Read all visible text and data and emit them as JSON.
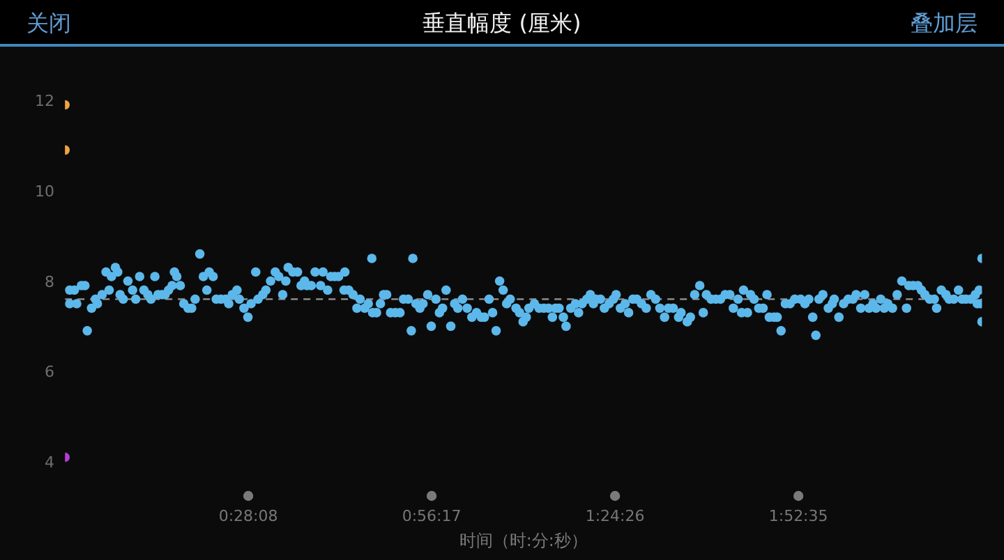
{
  "chart_data": {
    "type": "scatter",
    "title": "垂直幅度 (厘米)",
    "xlabel": "时间（时:分:秒）",
    "annotations": [
      "关闭",
      "叠加层"
    ],
    "xlim": [
      0,
      2.346
    ],
    "xticks": [
      {
        "value": 0.468889,
        "label": "0:28:08"
      },
      {
        "value": 0.938056,
        "label": "0:56:17"
      },
      {
        "value": 1.407222,
        "label": "1:24:26"
      },
      {
        "value": 1.876389,
        "label": "1:52:35"
      }
    ],
    "ylim": [
      4,
      12
    ],
    "yticks": [
      4,
      6,
      8,
      10,
      12
    ],
    "marker": "circle",
    "ref_lines": [
      {
        "axis": "y",
        "value": 7.6,
        "color": "#8c8c8c",
        "line_style": "dashed"
      }
    ],
    "series": [
      {
        "color": "#5cb8ea",
        "x": [
          0.012,
          0.024,
          0.012,
          0.03,
          0.042,
          0.051,
          0.057,
          0.068,
          0.078,
          0.083,
          0.095,
          0.105,
          0.113,
          0.119,
          0.129,
          0.135,
          0.141,
          0.149,
          0.161,
          0.173,
          0.181,
          0.191,
          0.202,
          0.212,
          0.22,
          0.23,
          0.238,
          0.248,
          0.256,
          0.265,
          0.274,
          0.28,
          0.286,
          0.295,
          0.304,
          0.315,
          0.324,
          0.333,
          0.345,
          0.354,
          0.363,
          0.369,
          0.379,
          0.387,
          0.399,
          0.411,
          0.419,
          0.428,
          0.44,
          0.446,
          0.458,
          0.468,
          0.476,
          0.488,
          0.494,
          0.506,
          0.514,
          0.526,
          0.538,
          0.547,
          0.557,
          0.565,
          0.571,
          0.583,
          0.595,
          0.604,
          0.613,
          0.619,
          0.63,
          0.64,
          0.654,
          0.66,
          0.672,
          0.68,
          0.69,
          0.7,
          0.714,
          0.716,
          0.726,
          0.737,
          0.747,
          0.755,
          0.767,
          0.776,
          0.785,
          0.787,
          0.797,
          0.807,
          0.815,
          0.823,
          0.833,
          0.845,
          0.857,
          0.866,
          0.878,
          0.886,
          0.89,
          0.898,
          0.908,
          0.916,
          0.928,
          0.937,
          0.949,
          0.958,
          0.966,
          0.975,
          0.987,
          0.997,
          1.005,
          1.017,
          1.029,
          1.041,
          1.053,
          1.065,
          1.073,
          1.085,
          1.094,
          1.103,
          1.112,
          1.121,
          1.13,
          1.139,
          1.154,
          1.163,
          1.172,
          1.18,
          1.187,
          1.201,
          1.213,
          1.225,
          1.237,
          1.247,
          1.255,
          1.264,
          1.275,
          1.282,
          1.294,
          1.306,
          1.314,
          1.323,
          1.335,
          1.344,
          1.352,
          1.358,
          1.37,
          1.38,
          1.392,
          1.403,
          1.41,
          1.421,
          1.433,
          1.442,
          1.453,
          1.463,
          1.475,
          1.487,
          1.499,
          1.511,
          1.522,
          1.534,
          1.544,
          1.556,
          1.57,
          1.576,
          1.592,
          1.6,
          1.611,
          1.624,
          1.633,
          1.641,
          1.653,
          1.665,
          1.677,
          1.689,
          1.701,
          1.71,
          1.722,
          1.731,
          1.736,
          1.746,
          1.754,
          1.763,
          1.775,
          1.786,
          1.796,
          1.802,
          1.814,
          1.822,
          1.832,
          1.843,
          1.855,
          1.867,
          1.882,
          1.893,
          1.903,
          1.913,
          1.921,
          1.929,
          1.939,
          1.953,
          1.963,
          1.968,
          1.98,
          1.992,
          2.004,
          2.016,
          2.024,
          2.036,
          2.046,
          2.057,
          2.067,
          2.075,
          2.087,
          2.096,
          2.105,
          2.117,
          2.129,
          2.141,
          2.153,
          2.159,
          2.17,
          2.182,
          2.191,
          2.2,
          2.212,
          2.224,
          2.23,
          2.242,
          2.254,
          2.262,
          2.274,
          2.286,
          2.295,
          2.305,
          2.317,
          2.329,
          2.334,
          2.339,
          2.343,
          2.346,
          2.346
        ],
        "values": [
          7.8,
          7.8,
          7.5,
          7.5,
          7.9,
          7.9,
          6.9,
          7.4,
          7.6,
          7.5,
          7.7,
          8.2,
          7.8,
          8.1,
          8.3,
          8.2,
          7.7,
          7.6,
          8.0,
          7.8,
          7.6,
          8.1,
          7.8,
          7.7,
          7.6,
          8.1,
          7.7,
          7.7,
          7.7,
          7.8,
          7.9,
          8.2,
          8.1,
          7.9,
          7.5,
          7.4,
          7.4,
          7.6,
          8.6,
          8.1,
          7.8,
          8.2,
          8.1,
          7.6,
          7.6,
          7.6,
          7.5,
          7.7,
          7.8,
          7.6,
          7.4,
          7.2,
          7.5,
          8.2,
          7.6,
          7.7,
          7.8,
          8.0,
          8.2,
          8.1,
          7.7,
          8.0,
          8.3,
          8.2,
          8.2,
          7.9,
          8.0,
          7.9,
          7.9,
          8.2,
          7.9,
          8.2,
          7.8,
          8.1,
          8.1,
          8.1,
          7.8,
          8.2,
          7.8,
          7.7,
          7.4,
          7.6,
          7.4,
          7.5,
          8.5,
          7.3,
          7.3,
          7.5,
          7.7,
          7.7,
          7.3,
          7.3,
          7.3,
          7.6,
          7.6,
          6.9,
          8.5,
          7.5,
          7.4,
          7.5,
          7.7,
          7.0,
          7.6,
          7.3,
          7.4,
          7.8,
          7.0,
          7.5,
          7.4,
          7.6,
          7.4,
          7.2,
          7.3,
          7.2,
          7.2,
          7.6,
          7.3,
          6.9,
          8.0,
          7.8,
          7.5,
          7.6,
          7.4,
          7.3,
          7.1,
          7.2,
          7.4,
          7.5,
          7.4,
          7.4,
          7.4,
          7.2,
          7.4,
          7.4,
          7.2,
          7.0,
          7.4,
          7.5,
          7.3,
          7.5,
          7.6,
          7.7,
          7.5,
          7.6,
          7.6,
          7.4,
          7.5,
          7.6,
          7.7,
          7.4,
          7.5,
          7.3,
          7.6,
          7.6,
          7.5,
          7.4,
          7.7,
          7.6,
          7.4,
          7.2,
          7.4,
          7.4,
          7.2,
          7.3,
          7.1,
          7.2,
          7.7,
          7.9,
          7.3,
          7.7,
          7.6,
          7.6,
          7.6,
          7.7,
          7.7,
          7.4,
          7.6,
          7.3,
          7.8,
          7.3,
          7.7,
          7.6,
          7.4,
          7.4,
          7.7,
          7.2,
          7.2,
          7.2,
          6.9,
          7.5,
          7.5,
          7.6,
          7.6,
          7.5,
          7.6,
          7.2,
          6.8,
          7.6,
          7.7,
          7.4,
          7.5,
          7.6,
          7.2,
          7.5,
          7.6,
          7.6,
          7.7,
          7.4,
          7.7,
          7.4,
          7.5,
          7.4,
          7.6,
          7.4,
          7.5,
          7.4,
          7.7,
          8.0,
          7.4,
          7.9,
          7.9,
          7.9,
          7.8,
          7.7,
          7.6,
          7.6,
          7.4,
          7.8,
          7.7,
          7.6,
          7.6,
          7.8,
          7.6,
          7.6,
          7.6,
          7.7,
          7.5,
          7.8,
          7.5,
          8.5,
          7.1
        ]
      },
      {
        "color": "#f0a445",
        "x": [
          0,
          0
        ],
        "values": [
          11.9,
          10.9
        ]
      },
      {
        "color": "#b43ed4",
        "x": [
          0
        ],
        "values": [
          4.1
        ]
      }
    ]
  }
}
